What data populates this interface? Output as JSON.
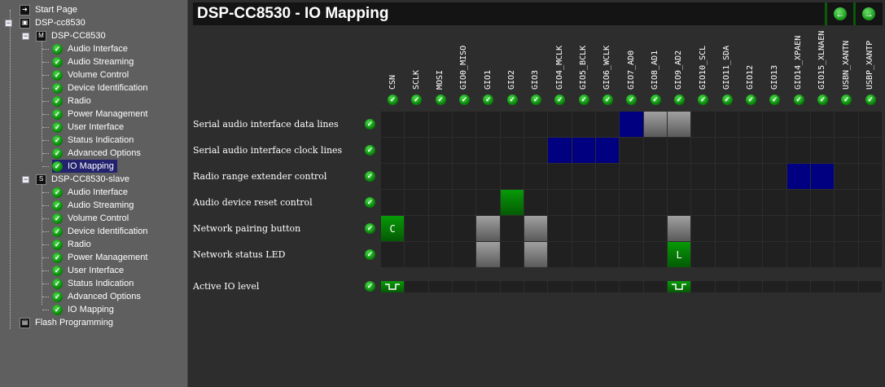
{
  "sidebar": {
    "start_page": "Start Page",
    "project": "DSP-cc8530",
    "devices": [
      {
        "badge": "M",
        "name": "DSP-CC8530",
        "items": [
          "Audio Interface",
          "Audio Streaming",
          "Volume Control",
          "Device Identification",
          "Radio",
          "Power Management",
          "User Interface",
          "Status Indication",
          "Advanced Options",
          "IO Mapping"
        ],
        "selected": 9
      },
      {
        "badge": "S",
        "name": "DSP-CC8530-slave",
        "items": [
          "Audio Interface",
          "Audio Streaming",
          "Volume Control",
          "Device Identification",
          "Radio",
          "Power Management",
          "User Interface",
          "Status Indication",
          "Advanced Options",
          "IO Mapping"
        ],
        "selected": -1
      }
    ],
    "flash": "Flash Programming"
  },
  "header": {
    "title": "DSP-CC8530 - IO Mapping",
    "back_icon": "arrow-left-icon",
    "forward_icon": "arrow-right-icon"
  },
  "columns": [
    "CSN",
    "SCLK",
    "MOSI",
    "GIO0_MISO",
    "GIO1",
    "GIO2",
    "GIO3",
    "GIO4_MCLK",
    "GIO5_BCLK",
    "GIO6_WCLK",
    "GIO7_AD0",
    "GIO8_AD1",
    "GIO9_AD2",
    "GIO10_SCL",
    "GIO11_SDA",
    "GIO12",
    "GIO13",
    "GIO14_XPAEN",
    "GIO15_XLNAEN",
    "USBN_XANTN",
    "USBP_XANTP"
  ],
  "colors": {
    "blue": "#000080",
    "gray": "#808080",
    "green": "#067a06"
  },
  "rows": [
    {
      "label": "Serial audio interface data lines",
      "cells": [
        {
          "col": "GIO7_AD0",
          "state": "blue"
        },
        {
          "col": "GIO8_AD1",
          "state": "gray"
        },
        {
          "col": "GIO9_AD2",
          "state": "gray"
        }
      ]
    },
    {
      "label": "Serial audio interface clock lines",
      "cells": [
        {
          "col": "GIO4_MCLK",
          "state": "blue"
        },
        {
          "col": "GIO5_BCLK",
          "state": "blue"
        },
        {
          "col": "GIO6_WCLK",
          "state": "blue"
        }
      ]
    },
    {
      "label": "Radio range extender control",
      "cells": [
        {
          "col": "GIO14_XPAEN",
          "state": "blue"
        },
        {
          "col": "GIO15_XLNAEN",
          "state": "blue"
        }
      ]
    },
    {
      "label": "Audio device reset control",
      "cells": [
        {
          "col": "GIO2",
          "state": "green"
        }
      ]
    },
    {
      "label": "Network pairing button",
      "cells": [
        {
          "col": "CSN",
          "state": "green",
          "text": "C"
        },
        {
          "col": "GIO1",
          "state": "gray"
        },
        {
          "col": "GIO3",
          "state": "gray"
        },
        {
          "col": "GIO9_AD2",
          "state": "gray"
        }
      ]
    },
    {
      "label": "Network status LED",
      "cells": [
        {
          "col": "GIO1",
          "state": "gray"
        },
        {
          "col": "GIO3",
          "state": "gray"
        },
        {
          "col": "GIO9_AD2",
          "state": "green",
          "text": "L"
        }
      ]
    }
  ],
  "active_io": {
    "label": "Active IO level",
    "cells": [
      {
        "col": "CSN",
        "state": "green",
        "icon": "active-low-pulse-icon"
      },
      {
        "col": "GIO9_AD2",
        "state": "green",
        "icon": "active-low-pulse-icon"
      }
    ]
  }
}
